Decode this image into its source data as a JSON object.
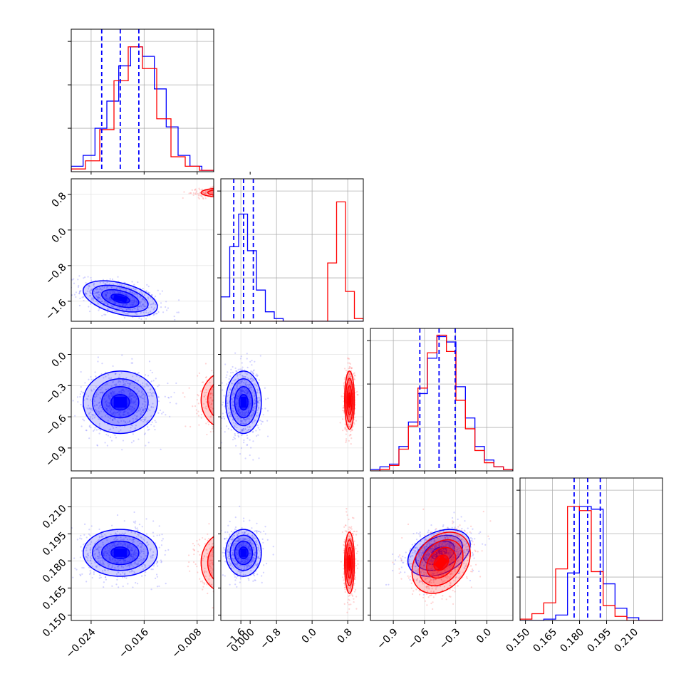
{
  "colors": {
    "blue": "#0000ff",
    "red": "#ff0000",
    "grid": "#b0b0b0"
  },
  "chart_data": {
    "type": "corner",
    "grid": true,
    "parameters": [
      {
        "range": [
          -0.027,
          -0.0055
        ],
        "ticks": [
          {
            "v": -0.024,
            "t": "−0.024"
          },
          {
            "v": -0.016,
            "t": "−0.016"
          },
          {
            "v": -0.008,
            "t": "−0.008"
          },
          {
            "v": 0.0,
            "t": "0.000"
          }
        ]
      },
      {
        "range": [
          -2.05,
          1.15
        ],
        "ticks": [
          {
            "v": -1.6,
            "t": "−1.6"
          },
          {
            "v": -0.8,
            "t": "−0.8"
          },
          {
            "v": 0.0,
            "t": "0.0"
          },
          {
            "v": 0.8,
            "t": "0.8"
          }
        ]
      },
      {
        "range": [
          -1.12,
          0.25
        ],
        "ticks": [
          {
            "v": -0.9,
            "t": "−0.9"
          },
          {
            "v": -0.6,
            "t": "−0.6"
          },
          {
            "v": -0.3,
            "t": "−0.3"
          },
          {
            "v": 0.0,
            "t": "0.0"
          }
        ]
      },
      {
        "range": [
          0.147,
          0.226
        ],
        "ticks": [
          {
            "v": 0.15,
            "t": "0.150"
          },
          {
            "v": 0.165,
            "t": "0.165"
          },
          {
            "v": 0.18,
            "t": "0.180"
          },
          {
            "v": 0.195,
            "t": "0.195"
          },
          {
            "v": 0.21,
            "t": "0.210"
          }
        ]
      }
    ],
    "series": [
      {
        "color": "blue",
        "mean": [
          -0.0196,
          -1.54,
          -0.46,
          0.1845
        ],
        "sd": [
          0.0028,
          0.2,
          0.15,
          0.0065
        ],
        "corr": {
          "0-1": -0.45,
          "0-2": 0.0,
          "0-3": 0.0,
          "1-2": 0.0,
          "1-3": 0.0,
          "2-3": 0.35
        },
        "quantiles": [
          [
            -0.0224,
            -0.0196,
            -0.0168
          ],
          [
            -1.76,
            -1.54,
            -1.32
          ],
          [
            -0.645,
            -0.46,
            -0.305
          ],
          [
            0.177,
            0.1845,
            0.1915
          ]
        ],
        "hist": [
          [
            0.04,
            0.12,
            0.32,
            0.52,
            0.78,
            0.92,
            0.85,
            0.61,
            0.33,
            0.12,
            0.04,
            0.01
          ],
          [
            0.18,
            0.55,
            0.79,
            0.52,
            0.23,
            0.07,
            0.02,
            0.0,
            0.0,
            0.0,
            0.0,
            0.0,
            0.0,
            0.0,
            0.0,
            0.0
          ],
          [
            0.01,
            0.03,
            0.05,
            0.18,
            0.36,
            0.57,
            0.83,
            0.99,
            0.95,
            0.62,
            0.39,
            0.18,
            0.08,
            0.03,
            0.01
          ],
          [
            0.0,
            0.0,
            0.01,
            0.04,
            0.35,
            0.84,
            0.82,
            0.27,
            0.09,
            0.02,
            0.0,
            0.0
          ]
        ]
      },
      {
        "color": "red",
        "mean": [
          -0.0034,
          0.84,
          -0.44,
          0.179
        ],
        "sd": [
          0.002,
          0.055,
          0.14,
          0.0085
        ],
        "corr": {
          "0-1": 0.0,
          "0-2": 0.0,
          "0-3": 0.0,
          "1-2": 0.0,
          "1-3": 0.0,
          "2-3": 0.3
        },
        "hist": [
          [
            0.02,
            0.08,
            0.31,
            0.67,
            0.92,
            0.76,
            0.39,
            0.11,
            0.04,
            0.01
          ],
          [
            0.0,
            0.0,
            0.0,
            0.0,
            0.0,
            0.0,
            0.0,
            0.0,
            0.0,
            0.0,
            0.0,
            0.0,
            0.43,
            0.88,
            0.22,
            0.02
          ],
          [
            0.0,
            0.01,
            0.04,
            0.16,
            0.33,
            0.61,
            0.87,
            1.0,
            0.88,
            0.52,
            0.31,
            0.15,
            0.06,
            0.03,
            0.01
          ],
          [
            0.01,
            0.05,
            0.13,
            0.38,
            0.84,
            0.81,
            0.36,
            0.11,
            0.03,
            0.0,
            0.0,
            0.0
          ]
        ]
      }
    ],
    "hist_scale": 1.05,
    "hist_yticks": [
      0.32,
      0.64,
      0.96
    ]
  }
}
